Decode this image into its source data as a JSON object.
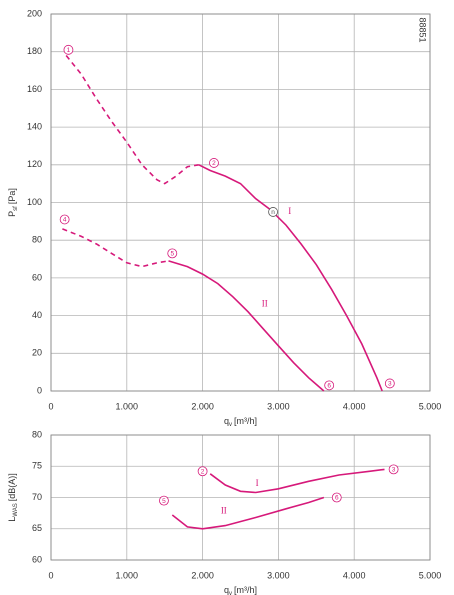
{
  "chart_data": [
    {
      "type": "line",
      "color": "#d6197a",
      "code": "88851",
      "ylabel": {
        "main": "P",
        "sub": "sf",
        "unit": "[Pa]"
      },
      "xlabel": {
        "main": "q",
        "sub": "v",
        "unit": "[m³/h]"
      },
      "xlim": [
        0,
        5000
      ],
      "xticks": [
        0,
        {
          "value": 1000,
          "label": "1.000"
        },
        {
          "value": 2000,
          "label": "2.000"
        },
        {
          "value": 3000,
          "label": "3.000"
        },
        {
          "value": 4000,
          "label": "4.000"
        },
        {
          "value": 5000,
          "label": "5.000"
        }
      ],
      "ylim": [
        0,
        200
      ],
      "yticks": [
        0,
        20,
        40,
        60,
        80,
        100,
        120,
        140,
        160,
        180,
        200
      ],
      "grid": true,
      "series": [
        {
          "segments": [
            {
              "style": "dashed",
              "x": [
                200,
                400,
                600,
                800,
                1000,
                1200,
                1400,
                1500,
                1650,
                1800,
                1950
              ],
              "values": [
                178,
                168,
                155,
                143,
                132,
                120,
                112,
                110,
                114,
                119,
                120
              ]
            },
            {
              "style": "solid",
              "x": [
                1950,
                2100,
                2300,
                2500,
                2700,
                2900,
                3100,
                3300,
                3500,
                3700,
                3900,
                4100,
                4300,
                4370
              ],
              "values": [
                120,
                117,
                114,
                110,
                102,
                96,
                88,
                78,
                67,
                54,
                40,
                25,
                7,
                0
              ]
            }
          ]
        },
        {
          "segments": [
            {
              "style": "dashed",
              "x": [
                150,
                400,
                600,
                800,
                1000,
                1200,
                1400,
                1550
              ],
              "values": [
                86,
                82,
                78,
                73,
                68,
                66,
                68,
                69
              ]
            },
            {
              "style": "solid",
              "x": [
                1550,
                1800,
                2000,
                2200,
                2400,
                2600,
                2800,
                3000,
                3200,
                3400,
                3600
              ],
              "values": [
                69,
                66,
                62,
                57,
                50,
                42,
                33,
                24,
                15,
                7,
                0
              ]
            }
          ]
        }
      ],
      "annotations": [
        {
          "text": "1",
          "x": 230,
          "y": 181,
          "circled": true
        },
        {
          "text": "2",
          "x": 2150,
          "y": 121,
          "circled": true
        },
        {
          "text": "n",
          "x": 2930,
          "y": 95,
          "circled": true,
          "color": "#555555"
        },
        {
          "text": "3",
          "x": 4470,
          "y": 4,
          "circled": true
        },
        {
          "text": "4",
          "x": 180,
          "y": 91,
          "circled": true
        },
        {
          "text": "5",
          "x": 1600,
          "y": 73,
          "circled": true
        },
        {
          "text": "6",
          "x": 3670,
          "y": 3,
          "circled": true
        },
        {
          "text": "I",
          "x": 3150,
          "y": 95,
          "circled": false
        },
        {
          "text": "II",
          "x": 2820,
          "y": 46,
          "circled": false
        }
      ]
    },
    {
      "type": "line",
      "color": "#d6197a",
      "ylabel": {
        "main": "L",
        "sub": "WAS",
        "unit": "[dB(A)]"
      },
      "xlabel": {
        "main": "q",
        "sub": "v",
        "unit": "[m³/h]"
      },
      "xlim": [
        0,
        5000
      ],
      "xticks": [
        0,
        {
          "value": 1000,
          "label": "1.000"
        },
        {
          "value": 2000,
          "label": "2.000"
        },
        {
          "value": 3000,
          "label": "3.000"
        },
        {
          "value": 4000,
          "label": "4.000"
        },
        {
          "value": 5000,
          "label": "5.000"
        }
      ],
      "ylim": [
        60,
        80
      ],
      "yticks": [
        60,
        65,
        70,
        75,
        80
      ],
      "grid": true,
      "series": [
        {
          "segments": [
            {
              "style": "solid",
              "x": [
                2100,
                2300,
                2500,
                2700,
                3000,
                3400,
                3800,
                4200,
                4400
              ],
              "values": [
                73.8,
                72,
                71,
                70.8,
                71.4,
                72.6,
                73.6,
                74.2,
                74.5
              ]
            }
          ]
        },
        {
          "segments": [
            {
              "style": "solid",
              "x": [
                1600,
                1800,
                2000,
                2300,
                2700,
                3100,
                3400,
                3600
              ],
              "values": [
                67.2,
                65.3,
                65,
                65.5,
                66.8,
                68.2,
                69.2,
                70
              ]
            }
          ]
        }
      ],
      "annotations": [
        {
          "text": "2",
          "x": 2000,
          "y": 74.2,
          "circled": true
        },
        {
          "text": "3",
          "x": 4520,
          "y": 74.5,
          "circled": true
        },
        {
          "text": "5",
          "x": 1490,
          "y": 69.5,
          "circled": true
        },
        {
          "text": "6",
          "x": 3770,
          "y": 70,
          "circled": true
        },
        {
          "text": "I",
          "x": 2720,
          "y": 72.2,
          "circled": false
        },
        {
          "text": "II",
          "x": 2280,
          "y": 67.8,
          "circled": false
        }
      ]
    }
  ]
}
